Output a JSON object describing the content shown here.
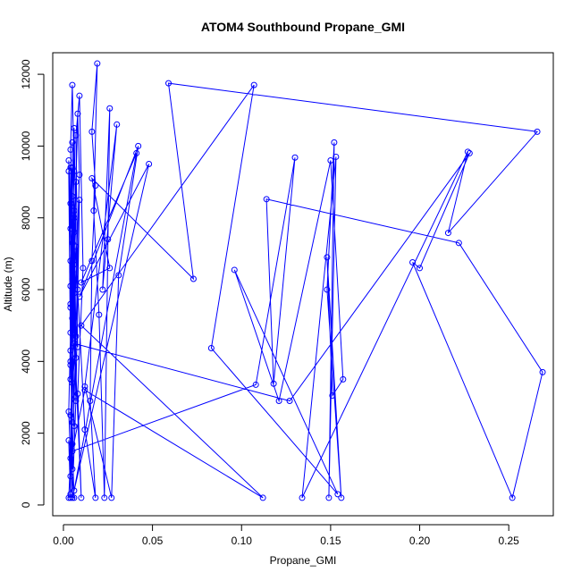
{
  "chart_data": {
    "type": "line",
    "title": "ATOM4 Southbound Propane_GMI",
    "xlabel": "Propane_GMI",
    "ylabel": "Altitude (m)",
    "xlim": [
      -0.006,
      0.275
    ],
    "ylim": [
      -300,
      12600
    ],
    "xticks": [
      0.0,
      0.05,
      0.1,
      0.15,
      0.2,
      0.25
    ],
    "xtick_labels": [
      "0.00",
      "0.05",
      "0.10",
      "0.15",
      "0.20",
      "0.25"
    ],
    "yticks": [
      0,
      2000,
      4000,
      6000,
      8000,
      10000,
      12000
    ],
    "ytick_labels": [
      "0",
      "2000",
      "4000",
      "6000",
      "8000",
      "10000",
      "12000"
    ],
    "grid": false,
    "line_color": "#0000ff",
    "marker": "open-circle",
    "series": [
      {
        "values": [
          [
            0.003,
            200
          ],
          [
            0.004,
            1300
          ],
          [
            0.003,
            2600
          ],
          [
            0.004,
            4800
          ],
          [
            0.004,
            6800
          ],
          [
            0.005,
            8600
          ],
          [
            0.004,
            9900
          ],
          [
            0.005,
            11700
          ],
          [
            0.006,
            9300
          ],
          [
            0.004,
            5600
          ],
          [
            0.005,
            3400
          ],
          [
            0.004,
            300
          ],
          [
            0.006,
            200
          ],
          [
            0.005,
            1700
          ],
          [
            0.004,
            4300
          ],
          [
            0.006,
            7600
          ],
          [
            0.005,
            10100
          ],
          [
            0.006,
            8000
          ],
          [
            0.007,
            4700
          ],
          [
            0.004,
            2500
          ],
          [
            0.005,
            200
          ],
          [
            0.007,
            2900
          ],
          [
            0.006,
            6700
          ],
          [
            0.008,
            10900
          ],
          [
            0.009,
            9200
          ],
          [
            0.006,
            4900
          ],
          [
            0.01,
            200
          ],
          [
            0.008,
            3100
          ],
          [
            0.011,
            6600
          ],
          [
            0.009,
            11400
          ],
          [
            0.007,
            10300
          ],
          [
            0.008,
            6000
          ],
          [
            0.012,
            2100
          ],
          [
            0.018,
            200
          ],
          [
            0.015,
            2900
          ],
          [
            0.016,
            6800
          ],
          [
            0.018,
            8900
          ],
          [
            0.016,
            10400
          ],
          [
            0.019,
            12300
          ],
          [
            0.017,
            8200
          ],
          [
            0.02,
            5300
          ],
          [
            0.023,
            200
          ],
          [
            0.025,
            7400
          ],
          [
            0.026,
            11050
          ],
          [
            0.022,
            6000
          ],
          [
            0.03,
            10600
          ],
          [
            0.012,
            3300
          ],
          [
            0.027,
            200
          ],
          [
            0.031,
            6400
          ],
          [
            0.042,
            10000
          ],
          [
            0.009,
            5800
          ],
          [
            0.048,
            9500
          ],
          [
            0.006,
            400
          ],
          [
            0.041,
            9800
          ],
          [
            0.01,
            6200
          ],
          [
            0.026,
            6600
          ],
          [
            0.016,
            9100
          ],
          [
            0.073,
            6300
          ],
          [
            0.059,
            11750
          ],
          [
            0.266,
            10400
          ],
          [
            0.216,
            7580
          ],
          [
            0.227,
            9840
          ],
          [
            0.134,
            200
          ],
          [
            0.153,
            9700
          ],
          [
            0.149,
            200
          ],
          [
            0.152,
            10100
          ],
          [
            0.148,
            6000
          ],
          [
            0.156,
            200
          ],
          [
            0.148,
            6900
          ],
          [
            0.151,
            3050
          ],
          [
            0.157,
            3500
          ],
          [
            0.15,
            9600
          ],
          [
            0.121,
            2900
          ],
          [
            0.096,
            6550
          ],
          [
            0.154,
            300
          ],
          [
            0.083,
            4370
          ],
          [
            0.107,
            11700
          ],
          [
            0.01,
            5000
          ],
          [
            0.112,
            200
          ],
          [
            0.012,
            3200
          ],
          [
            0.005,
            1500
          ],
          [
            0.108,
            3350
          ],
          [
            0.13,
            9680
          ],
          [
            0.118,
            3380
          ],
          [
            0.114,
            8520
          ],
          [
            0.222,
            7300
          ],
          [
            0.269,
            3700
          ],
          [
            0.252,
            200
          ],
          [
            0.196,
            6760
          ],
          [
            0.2,
            6600
          ],
          [
            0.228,
            9800
          ],
          [
            0.127,
            2900
          ],
          [
            0.006,
            4500
          ],
          [
            0.004,
            3500
          ],
          [
            0.005,
            9400
          ],
          [
            0.004,
            7700
          ],
          [
            0.003,
            9600
          ],
          [
            0.006,
            5900
          ],
          [
            0.004,
            8400
          ],
          [
            0.007,
            4100
          ],
          [
            0.005,
            7300
          ],
          [
            0.004,
            9400
          ],
          [
            0.006,
            2200
          ],
          [
            0.005,
            6300
          ],
          [
            0.004,
            3900
          ],
          [
            0.007,
            7200
          ],
          [
            0.005,
            5200
          ],
          [
            0.003,
            9300
          ],
          [
            0.004,
            4000
          ],
          [
            0.006,
            8200
          ],
          [
            0.005,
            2300
          ],
          [
            0.004,
            5500
          ],
          [
            0.007,
            9000
          ],
          [
            0.004,
            6100
          ],
          [
            0.005,
            1000
          ],
          [
            0.009,
            8500
          ],
          [
            0.007,
            3000
          ],
          [
            0.005,
            6500
          ],
          [
            0.008,
            4400
          ],
          [
            0.006,
            10500
          ],
          [
            0.004,
            800
          ],
          [
            0.003,
            1800
          ],
          [
            0.004,
            200
          ]
        ]
      }
    ]
  }
}
